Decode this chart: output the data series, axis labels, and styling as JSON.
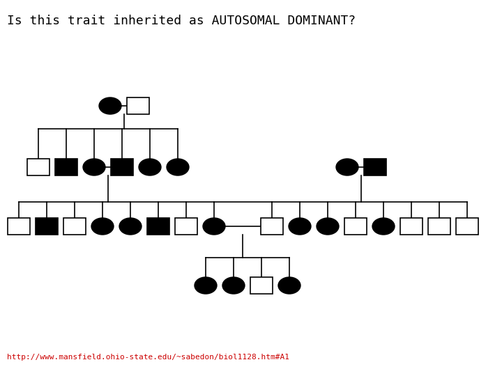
{
  "title": "Is this trait inherited as AUTOSOMAL DOMINANT?",
  "url": "http://www.mansfield.ohio-state.edu/~sabedon/biol1128.htm#A1",
  "title_fontsize": 13,
  "url_fontsize": 8,
  "bg_color": "#ffffff",
  "line_color": "#000000",
  "lw": 1.2,
  "r": 0.018,
  "hs": 0.018
}
